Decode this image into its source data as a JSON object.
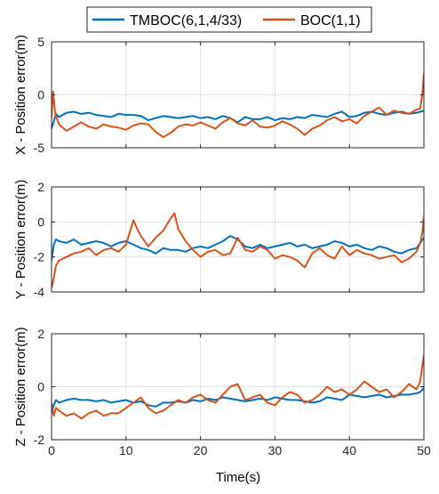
{
  "colors": {
    "tmboc": "#0072BD",
    "boc": "#D95319",
    "grid": "#e1e1e1",
    "axis": "#262626"
  },
  "legend": {
    "tmboc_label": "TMBOC(6,1,4/33)",
    "boc_label": "BOC(1,1)",
    "placement": "top-center"
  },
  "chart_data": [
    {
      "type": "line",
      "ylabel": "X - Position error(m)",
      "xlabel": "",
      "xlim": [
        0,
        50
      ],
      "ylim": [
        -5,
        5
      ],
      "xticks": [
        0,
        10,
        20,
        30,
        40,
        50
      ],
      "xtick_labels": [
        "",
        "",
        "",
        "",
        "",
        ""
      ],
      "yticks": [
        -5,
        0,
        5
      ],
      "ytick_labels": [
        "-5",
        "0",
        "5"
      ],
      "grid": true,
      "series": [
        {
          "name": "TMBOC(6,1,4/33)",
          "color": "#0072BD",
          "x": [
            0,
            0.3,
            0.6,
            1,
            2,
            3,
            4,
            5,
            6,
            7,
            8,
            9,
            10,
            11,
            12,
            13,
            14,
            15,
            16,
            17,
            18,
            19,
            20,
            21,
            22,
            23,
            24,
            25,
            26,
            27,
            28,
            29,
            30,
            31,
            32,
            33,
            34,
            35,
            36,
            37,
            38,
            39,
            40,
            41,
            42,
            43,
            44,
            45,
            46,
            47,
            48,
            49,
            49.5,
            50
          ],
          "y": [
            -3.2,
            -2.5,
            -1.8,
            -2.1,
            -1.7,
            -1.6,
            -1.8,
            -1.7,
            -1.9,
            -2.0,
            -2.1,
            -1.8,
            -1.9,
            -1.9,
            -2.0,
            -2.4,
            -2.2,
            -2.0,
            -2.1,
            -2.2,
            -2.1,
            -2.0,
            -2.2,
            -2.1,
            -2.3,
            -2.0,
            -2.2,
            -2.6,
            -2.1,
            -2.3,
            -2.3,
            -2.1,
            -2.4,
            -2.2,
            -2.3,
            -2.1,
            -2.2,
            -1.9,
            -2.0,
            -2.1,
            -1.8,
            -1.6,
            -2.1,
            -2.0,
            -1.7,
            -1.6,
            -1.8,
            -1.9,
            -1.7,
            -1.6,
            -1.8,
            -1.7,
            -1.6,
            -1.5
          ]
        },
        {
          "name": "BOC(1,1)",
          "color": "#D95319",
          "x": [
            0,
            0.2,
            0.5,
            1,
            2,
            3,
            4,
            5,
            6,
            7,
            8,
            9,
            10,
            11,
            12,
            13,
            14,
            15,
            16,
            17,
            18,
            19,
            20,
            21,
            22,
            23,
            24,
            25,
            26,
            27,
            28,
            29,
            30,
            31,
            32,
            33,
            34,
            35,
            36,
            37,
            38,
            39,
            40,
            41,
            42,
            43,
            44,
            45,
            46,
            47,
            48,
            49,
            49.5,
            49.8,
            50
          ],
          "y": [
            -2.2,
            0.3,
            -1.8,
            -2.8,
            -3.4,
            -3.0,
            -2.6,
            -3.0,
            -3.2,
            -2.8,
            -3.0,
            -3.1,
            -3.3,
            -2.9,
            -2.7,
            -2.8,
            -3.5,
            -4.0,
            -3.6,
            -3.0,
            -2.8,
            -2.9,
            -2.6,
            -2.9,
            -3.2,
            -2.6,
            -2.2,
            -2.7,
            -2.9,
            -2.4,
            -3.0,
            -3.1,
            -2.9,
            -2.5,
            -2.8,
            -3.2,
            -3.8,
            -3.2,
            -2.9,
            -2.4,
            -2.1,
            -2.5,
            -2.3,
            -2.7,
            -2.0,
            -1.6,
            -1.2,
            -1.9,
            -1.5,
            -1.7,
            -1.8,
            -1.4,
            -1.3,
            0.1,
            2.0
          ]
        }
      ]
    },
    {
      "type": "line",
      "ylabel": "Y - Position error(m)",
      "xlabel": "",
      "xlim": [
        0,
        50
      ],
      "ylim": [
        -4,
        2
      ],
      "xticks": [
        0,
        10,
        20,
        30,
        40,
        50
      ],
      "xtick_labels": [
        "",
        "",
        "",
        "",
        "",
        ""
      ],
      "yticks": [
        -4,
        -2,
        0,
        2
      ],
      "ytick_labels": [
        "-4",
        "-2",
        "0",
        "2"
      ],
      "grid": true,
      "series": [
        {
          "name": "TMBOC(6,1,4/33)",
          "color": "#0072BD",
          "x": [
            0,
            0.3,
            0.6,
            1,
            2,
            3,
            4,
            5,
            6,
            7,
            8,
            9,
            10,
            11,
            12,
            13,
            14,
            15,
            16,
            17,
            18,
            19,
            20,
            21,
            22,
            23,
            24,
            25,
            26,
            27,
            28,
            29,
            30,
            31,
            32,
            33,
            34,
            35,
            36,
            37,
            38,
            39,
            40,
            41,
            42,
            43,
            44,
            45,
            46,
            47,
            48,
            49,
            49.5,
            50
          ],
          "y": [
            -2.2,
            -1.3,
            -1.0,
            -1.1,
            -1.2,
            -1.0,
            -1.3,
            -1.2,
            -1.1,
            -1.2,
            -1.4,
            -1.2,
            -1.1,
            -1.3,
            -1.5,
            -1.6,
            -1.8,
            -1.5,
            -1.6,
            -1.6,
            -1.7,
            -1.5,
            -1.4,
            -1.5,
            -1.3,
            -1.1,
            -0.8,
            -1.0,
            -1.4,
            -1.5,
            -1.3,
            -1.5,
            -1.4,
            -1.3,
            -1.2,
            -1.4,
            -1.3,
            -1.5,
            -1.4,
            -1.3,
            -1.1,
            -1.2,
            -1.4,
            -1.3,
            -1.5,
            -1.6,
            -1.4,
            -1.5,
            -1.7,
            -1.8,
            -1.6,
            -1.5,
            -1.2,
            -0.9
          ]
        },
        {
          "name": "BOC(1,1)",
          "color": "#D95319",
          "x": [
            0,
            0.3,
            0.6,
            1,
            2,
            3,
            4,
            5,
            6,
            7,
            8,
            9,
            10,
            10.5,
            11,
            11.5,
            12,
            13,
            14,
            15,
            16,
            16.5,
            17,
            18,
            19,
            20,
            21,
            22,
            23,
            24,
            25,
            26,
            27,
            28,
            29,
            30,
            31,
            32,
            33,
            34,
            35,
            36,
            37,
            38,
            39,
            40,
            41,
            42,
            43,
            44,
            45,
            46,
            47,
            48,
            49,
            49.5,
            49.8,
            50
          ],
          "y": [
            -3.8,
            -3.2,
            -2.5,
            -2.2,
            -2.0,
            -1.8,
            -1.7,
            -1.5,
            -1.9,
            -1.6,
            -1.5,
            -1.7,
            -1.3,
            -0.6,
            0.1,
            -0.4,
            -0.8,
            -1.4,
            -0.9,
            -0.5,
            0.2,
            0.5,
            -0.4,
            -1.1,
            -1.6,
            -2.0,
            -1.7,
            -1.6,
            -1.9,
            -1.8,
            -0.9,
            -1.6,
            -1.7,
            -1.4,
            -1.6,
            -2.1,
            -1.9,
            -2.0,
            -2.2,
            -2.6,
            -1.8,
            -1.5,
            -1.9,
            -2.1,
            -1.4,
            -1.9,
            -1.6,
            -1.8,
            -1.9,
            -2.1,
            -2.0,
            -1.9,
            -2.3,
            -2.1,
            -1.7,
            -1.2,
            -0.6,
            0.3
          ]
        }
      ]
    },
    {
      "type": "line",
      "ylabel": "Z - Position error(m)",
      "xlabel": "Time(s)",
      "xlim": [
        0,
        50
      ],
      "ylim": [
        -2,
        2
      ],
      "xticks": [
        0,
        10,
        20,
        30,
        40,
        50
      ],
      "xtick_labels": [
        "0",
        "10",
        "20",
        "30",
        "40",
        "50"
      ],
      "yticks": [
        -2,
        0,
        2
      ],
      "ytick_labels": [
        "-2",
        "0",
        "2"
      ],
      "grid": true,
      "series": [
        {
          "name": "TMBOC(6,1,4/33)",
          "color": "#0072BD",
          "x": [
            0,
            0.3,
            0.6,
            1,
            2,
            3,
            4,
            5,
            6,
            7,
            8,
            9,
            10,
            11,
            12,
            13,
            14,
            15,
            16,
            17,
            18,
            19,
            20,
            21,
            22,
            23,
            24,
            25,
            26,
            27,
            28,
            29,
            30,
            31,
            32,
            33,
            34,
            35,
            36,
            37,
            38,
            39,
            40,
            41,
            42,
            43,
            44,
            45,
            46,
            47,
            48,
            49,
            49.5,
            50
          ],
          "y": [
            -1.0,
            -0.7,
            -0.5,
            -0.6,
            -0.5,
            -0.45,
            -0.5,
            -0.5,
            -0.55,
            -0.5,
            -0.6,
            -0.55,
            -0.5,
            -0.6,
            -0.55,
            -0.7,
            -0.75,
            -0.6,
            -0.6,
            -0.55,
            -0.6,
            -0.5,
            -0.55,
            -0.45,
            -0.5,
            -0.4,
            -0.45,
            -0.5,
            -0.55,
            -0.5,
            -0.45,
            -0.5,
            -0.4,
            -0.45,
            -0.5,
            -0.5,
            -0.55,
            -0.6,
            -0.55,
            -0.4,
            -0.45,
            -0.5,
            -0.3,
            -0.35,
            -0.4,
            -0.35,
            -0.3,
            -0.4,
            -0.35,
            -0.3,
            -0.3,
            -0.25,
            -0.2,
            -0.05
          ]
        },
        {
          "name": "BOC(1,1)",
          "color": "#D95319",
          "x": [
            0,
            0.3,
            0.6,
            1,
            2,
            3,
            4,
            5,
            6,
            7,
            8,
            9,
            10,
            11,
            12,
            13,
            14,
            15,
            16,
            17,
            18,
            19,
            20,
            21,
            22,
            23,
            24,
            25,
            26,
            27,
            28,
            29,
            30,
            31,
            32,
            33,
            34,
            35,
            36,
            37,
            38,
            39,
            40,
            41,
            42,
            43,
            44,
            45,
            46,
            47,
            48,
            49,
            49.5,
            49.8,
            50
          ],
          "y": [
            -0.6,
            -1.1,
            -0.8,
            -0.9,
            -1.1,
            -1.0,
            -1.2,
            -1.0,
            -0.9,
            -1.1,
            -1.0,
            -1.0,
            -0.8,
            -0.6,
            -0.4,
            -0.8,
            -1.0,
            -0.9,
            -0.7,
            -0.5,
            -0.6,
            -0.4,
            -0.3,
            -0.5,
            -0.6,
            -0.3,
            0.0,
            0.1,
            -0.5,
            -0.4,
            -0.3,
            -0.6,
            -0.7,
            -0.4,
            -0.2,
            -0.3,
            -0.6,
            -0.5,
            -0.3,
            0.0,
            -0.2,
            -0.1,
            -0.3,
            -0.1,
            0.2,
            0.0,
            -0.2,
            -0.1,
            -0.4,
            -0.2,
            0.1,
            -0.1,
            0.2,
            0.8,
            1.2
          ]
        }
      ]
    }
  ]
}
